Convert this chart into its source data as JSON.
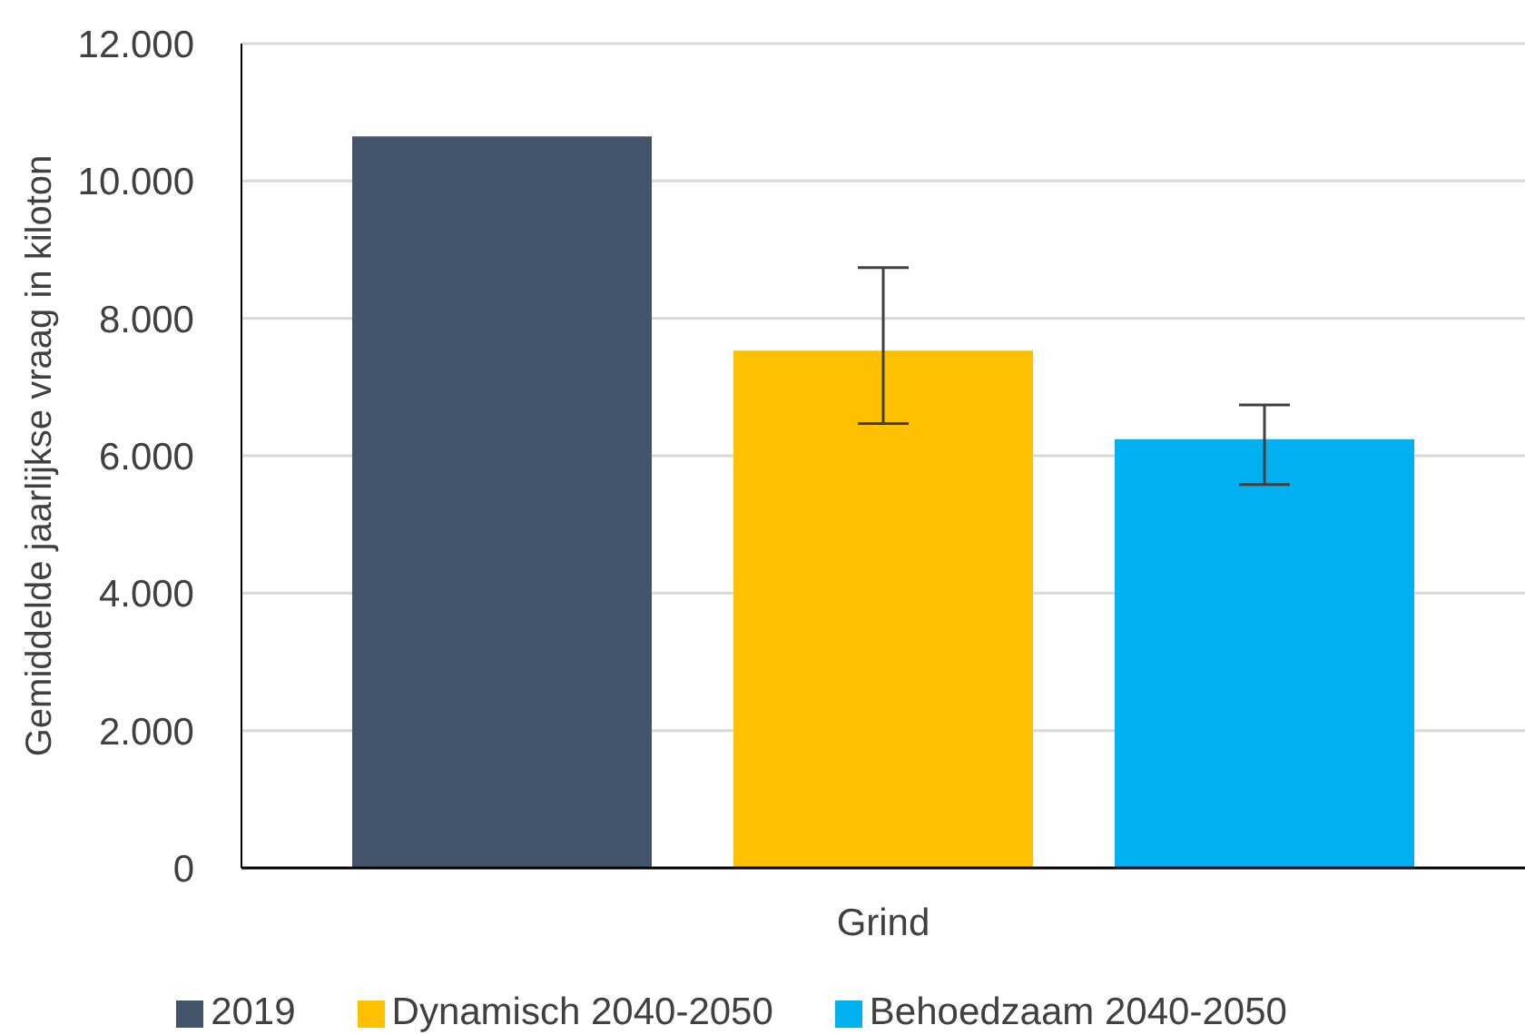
{
  "chart_data": {
    "type": "bar",
    "categories": [
      "Grind"
    ],
    "ylabel": "Gemiddelde jaarlijkse vraag in kiloton",
    "ylim": [
      0,
      12000
    ],
    "yticks": [
      0,
      {
        "value": 2000,
        "label": "2.000"
      },
      {
        "value": 4000,
        "label": "4.000"
      },
      {
        "value": 6000,
        "label": "6.000"
      },
      {
        "value": 8000,
        "label": "8.000"
      },
      {
        "value": 10000,
        "label": "10.000"
      },
      {
        "value": 12000,
        "label": "12.000"
      }
    ],
    "grid": "y",
    "legend": "bottom",
    "series": [
      {
        "name": "2019",
        "color": "#44546a",
        "values": [
          10650
        ]
      },
      {
        "name": "Dynamisch 2040-2050",
        "color": "#ffc000",
        "values": [
          7530
        ],
        "errors": [
          [
            6470,
            8740
          ]
        ]
      },
      {
        "name": "Behoedzaam 2040-2050",
        "color": "#00b0f0",
        "values": [
          6240
        ],
        "errors": [
          [
            5580,
            6740
          ]
        ]
      }
    ]
  }
}
